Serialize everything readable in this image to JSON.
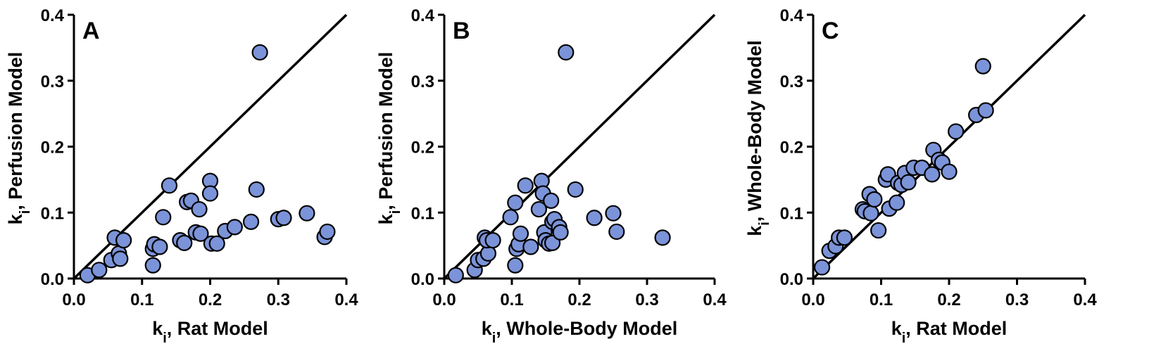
{
  "chart_data": [
    {
      "type": "scatter",
      "panel_label": "A",
      "xlabel": {
        "prefix": "k",
        "sub": "i",
        "suffix": ", Rat Model"
      },
      "ylabel": {
        "prefix": "k",
        "sub": "i",
        "suffix": ", Perfusion Model"
      },
      "xlim": [
        0,
        0.4
      ],
      "ylim": [
        0,
        0.4
      ],
      "xticks": [
        "0.0",
        "0.1",
        "0.2",
        "0.3",
        "0.4"
      ],
      "yticks": [
        "0.0",
        "0.1",
        "0.2",
        "0.3",
        "0.4"
      ],
      "identity_line": true,
      "point_color": "#7b93d8",
      "points": [
        [
          0.02,
          0.005
        ],
        [
          0.037,
          0.013
        ],
        [
          0.055,
          0.028
        ],
        [
          0.06,
          0.062
        ],
        [
          0.066,
          0.038
        ],
        [
          0.068,
          0.03
        ],
        [
          0.073,
          0.058
        ],
        [
          0.116,
          0.02
        ],
        [
          0.116,
          0.045
        ],
        [
          0.118,
          0.052
        ],
        [
          0.126,
          0.048
        ],
        [
          0.131,
          0.093
        ],
        [
          0.14,
          0.141
        ],
        [
          0.156,
          0.058
        ],
        [
          0.162,
          0.054
        ],
        [
          0.166,
          0.116
        ],
        [
          0.172,
          0.118
        ],
        [
          0.179,
          0.07
        ],
        [
          0.184,
          0.105
        ],
        [
          0.186,
          0.068
        ],
        [
          0.2,
          0.148
        ],
        [
          0.2,
          0.129
        ],
        [
          0.202,
          0.053
        ],
        [
          0.21,
          0.053
        ],
        [
          0.222,
          0.072
        ],
        [
          0.236,
          0.078
        ],
        [
          0.26,
          0.086
        ],
        [
          0.268,
          0.135
        ],
        [
          0.273,
          0.343
        ],
        [
          0.3,
          0.09
        ],
        [
          0.308,
          0.092
        ],
        [
          0.342,
          0.099
        ],
        [
          0.368,
          0.063
        ],
        [
          0.372,
          0.071
        ]
      ]
    },
    {
      "type": "scatter",
      "panel_label": "B",
      "xlabel": {
        "prefix": "k",
        "sub": "i",
        "suffix": ", Whole-Body Model"
      },
      "ylabel": {
        "prefix": "k",
        "sub": "i",
        "suffix": ", Perfusion Model"
      },
      "xlim": [
        0,
        0.4
      ],
      "ylim": [
        0,
        0.4
      ],
      "xticks": [
        "0.0",
        "0.1",
        "0.2",
        "0.3",
        "0.4"
      ],
      "yticks": [
        "0.0",
        "0.1",
        "0.2",
        "0.3",
        "0.4"
      ],
      "identity_line": true,
      "point_color": "#7b93d8",
      "points": [
        [
          0.017,
          0.005
        ],
        [
          0.045,
          0.013
        ],
        [
          0.05,
          0.028
        ],
        [
          0.058,
          0.03
        ],
        [
          0.06,
          0.062
        ],
        [
          0.065,
          0.038
        ],
        [
          0.063,
          0.058
        ],
        [
          0.072,
          0.058
        ],
        [
          0.098,
          0.093
        ],
        [
          0.105,
          0.115
        ],
        [
          0.105,
          0.02
        ],
        [
          0.107,
          0.045
        ],
        [
          0.11,
          0.052
        ],
        [
          0.113,
          0.068
        ],
        [
          0.12,
          0.141
        ],
        [
          0.128,
          0.048
        ],
        [
          0.14,
          0.105
        ],
        [
          0.144,
          0.148
        ],
        [
          0.146,
          0.129
        ],
        [
          0.148,
          0.07
        ],
        [
          0.15,
          0.058
        ],
        [
          0.155,
          0.053
        ],
        [
          0.158,
          0.118
        ],
        [
          0.16,
          0.054
        ],
        [
          0.16,
          0.086
        ],
        [
          0.163,
          0.09
        ],
        [
          0.17,
          0.078
        ],
        [
          0.172,
          0.07
        ],
        [
          0.18,
          0.343
        ],
        [
          0.194,
          0.135
        ],
        [
          0.222,
          0.092
        ],
        [
          0.25,
          0.099
        ],
        [
          0.255,
          0.071
        ],
        [
          0.323,
          0.062
        ]
      ]
    },
    {
      "type": "scatter",
      "panel_label": "C",
      "xlabel": {
        "prefix": "k",
        "sub": "i",
        "suffix": ", Rat Model"
      },
      "ylabel": {
        "prefix": "k",
        "sub": "i",
        "suffix": ", Whole-Body Model"
      },
      "xlim": [
        0,
        0.4
      ],
      "ylim": [
        0,
        0.4
      ],
      "xticks": [
        "0.0",
        "0.1",
        "0.2",
        "0.3",
        "0.4"
      ],
      "yticks": [
        "0.0",
        "0.1",
        "0.2",
        "0.3",
        "0.4"
      ],
      "identity_line": true,
      "point_color": "#7b93d8",
      "points": [
        [
          0.013,
          0.017
        ],
        [
          0.024,
          0.042
        ],
        [
          0.033,
          0.049
        ],
        [
          0.038,
          0.062
        ],
        [
          0.046,
          0.062
        ],
        [
          0.073,
          0.105
        ],
        [
          0.076,
          0.102
        ],
        [
          0.083,
          0.128
        ],
        [
          0.085,
          0.099
        ],
        [
          0.09,
          0.12
        ],
        [
          0.096,
          0.073
        ],
        [
          0.107,
          0.15
        ],
        [
          0.11,
          0.158
        ],
        [
          0.112,
          0.106
        ],
        [
          0.123,
          0.115
        ],
        [
          0.125,
          0.145
        ],
        [
          0.13,
          0.142
        ],
        [
          0.135,
          0.16
        ],
        [
          0.14,
          0.146
        ],
        [
          0.148,
          0.168
        ],
        [
          0.16,
          0.168
        ],
        [
          0.175,
          0.158
        ],
        [
          0.177,
          0.195
        ],
        [
          0.185,
          0.18
        ],
        [
          0.19,
          0.176
        ],
        [
          0.2,
          0.162
        ],
        [
          0.21,
          0.223
        ],
        [
          0.24,
          0.248
        ],
        [
          0.25,
          0.322
        ],
        [
          0.254,
          0.255
        ]
      ]
    }
  ]
}
